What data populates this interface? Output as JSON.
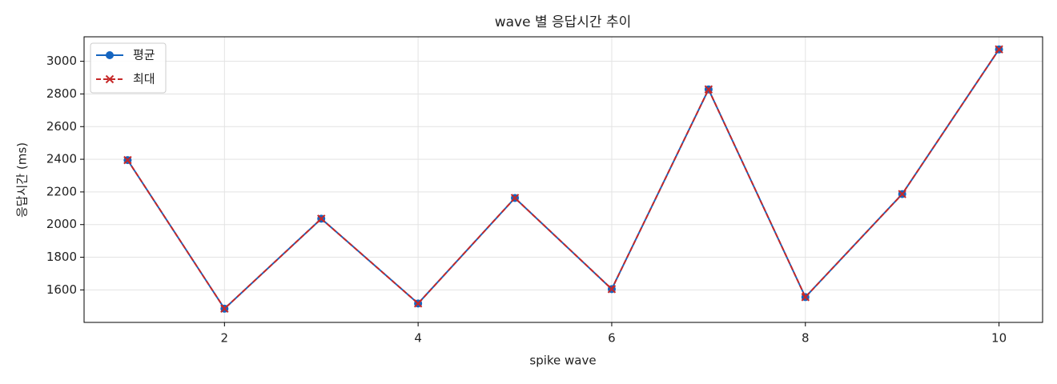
{
  "chart_data": {
    "type": "line",
    "title": "wave 별 응답시간 추이",
    "x_label": "spike wave",
    "y_label": "응답시간 (ms)",
    "x": [
      1,
      2,
      3,
      4,
      5,
      6,
      7,
      8,
      9,
      10
    ],
    "series": [
      {
        "name": "평균",
        "color": "#1565c0",
        "marker": "o",
        "linestyle": "solid",
        "values": [
          2395,
          1485,
          2036,
          1517,
          2163,
          1605,
          2828,
          1556,
          2187,
          3073
        ]
      },
      {
        "name": "최대",
        "color": "#c62828",
        "marker": "x",
        "linestyle": "dashed",
        "values": [
          2395,
          1485,
          2036,
          1517,
          2163,
          1605,
          2828,
          1556,
          2187,
          3073
        ]
      }
    ],
    "xlim": [
      0.55,
      10.45
    ],
    "xticks": [
      2,
      4,
      6,
      8,
      10
    ],
    "ylim": [
      1401,
      3150
    ],
    "yticks": [
      1600,
      1800,
      2000,
      2200,
      2400,
      2600,
      2800,
      3000
    ],
    "grid": true,
    "legend": "upper left"
  }
}
